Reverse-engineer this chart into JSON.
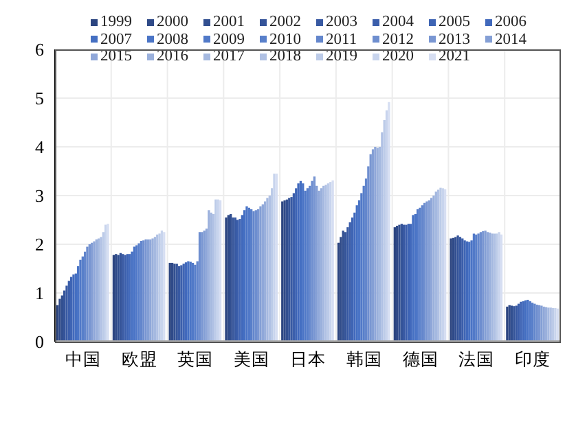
{
  "chart_data": {
    "type": "bar",
    "categories": [
      "中国",
      "欧盟",
      "英国",
      "美国",
      "日本",
      "韩国",
      "德国",
      "法国",
      "印度"
    ],
    "ylim": [
      0,
      6
    ],
    "yticks": [
      0,
      1,
      2,
      3,
      4,
      5,
      6
    ],
    "grid": true,
    "legend": "top",
    "series": [
      {
        "name": "1999",
        "color": "#2c4580",
        "values": [
          0.75,
          1.78,
          1.62,
          2.55,
          2.88,
          2.03,
          2.35,
          2.12,
          0.72
        ]
      },
      {
        "name": "2000",
        "color": "#2f4a88",
        "values": [
          0.88,
          1.8,
          1.62,
          2.6,
          2.9,
          2.15,
          2.38,
          2.13,
          0.75
        ]
      },
      {
        "name": "2001",
        "color": "#324f90",
        "values": [
          0.95,
          1.78,
          1.6,
          2.62,
          2.92,
          2.28,
          2.4,
          2.15,
          0.74
        ]
      },
      {
        "name": "2002",
        "color": "#355499",
        "values": [
          1.05,
          1.82,
          1.6,
          2.55,
          2.95,
          2.25,
          2.42,
          2.18,
          0.73
        ]
      },
      {
        "name": "2003",
        "color": "#3859a2",
        "values": [
          1.15,
          1.8,
          1.55,
          2.55,
          2.97,
          2.35,
          2.4,
          2.15,
          0.74
        ]
      },
      {
        "name": "2004",
        "color": "#3b5eab",
        "values": [
          1.25,
          1.78,
          1.57,
          2.5,
          3.05,
          2.45,
          2.4,
          2.12,
          0.78
        ]
      },
      {
        "name": "2005",
        "color": "#3e64b4",
        "values": [
          1.33,
          1.8,
          1.6,
          2.52,
          3.15,
          2.55,
          2.42,
          2.08,
          0.82
        ]
      },
      {
        "name": "2006",
        "color": "#4169bc",
        "values": [
          1.38,
          1.8,
          1.63,
          2.6,
          3.25,
          2.65,
          2.42,
          2.06,
          0.83
        ]
      },
      {
        "name": "2007",
        "color": "#446fc2",
        "values": [
          1.4,
          1.85,
          1.65,
          2.7,
          3.3,
          2.8,
          2.6,
          2.05,
          0.85
        ]
      },
      {
        "name": "2008",
        "color": "#4a74c6",
        "values": [
          1.55,
          1.95,
          1.64,
          2.78,
          3.25,
          2.9,
          2.62,
          2.08,
          0.86
        ]
      },
      {
        "name": "2009",
        "color": "#5179c8",
        "values": [
          1.68,
          1.98,
          1.62,
          2.75,
          3.1,
          3.05,
          2.72,
          2.22,
          0.83
        ]
      },
      {
        "name": "2010",
        "color": "#587fca",
        "values": [
          1.75,
          2.02,
          1.58,
          2.72,
          3.15,
          3.2,
          2.75,
          2.2,
          0.8
        ]
      },
      {
        "name": "2011",
        "color": "#6386cc",
        "values": [
          1.85,
          2.07,
          1.65,
          2.68,
          3.2,
          3.35,
          2.8,
          2.22,
          0.78
        ]
      },
      {
        "name": "2012",
        "color": "#6e8ecf",
        "values": [
          1.95,
          2.08,
          2.25,
          2.7,
          3.3,
          3.6,
          2.85,
          2.25,
          0.76
        ]
      },
      {
        "name": "2013",
        "color": "#7996d2",
        "values": [
          2.0,
          2.1,
          2.25,
          2.72,
          3.39,
          3.85,
          2.88,
          2.27,
          0.75
        ]
      },
      {
        "name": "2014",
        "color": "#849fd5",
        "values": [
          2.03,
          2.1,
          2.28,
          2.78,
          3.2,
          3.95,
          2.9,
          2.28,
          0.74
        ]
      },
      {
        "name": "2015",
        "color": "#8fa7d9",
        "values": [
          2.06,
          2.1,
          2.32,
          2.82,
          3.1,
          4.0,
          2.95,
          2.25,
          0.72
        ]
      },
      {
        "name": "2016",
        "color": "#9ab0dc",
        "values": [
          2.1,
          2.12,
          2.7,
          2.88,
          3.15,
          3.98,
          3.0,
          2.24,
          0.71
        ]
      },
      {
        "name": "2017",
        "color": "#a5b9e0",
        "values": [
          2.12,
          2.15,
          2.65,
          2.95,
          3.2,
          4.0,
          3.08,
          2.22,
          0.7
        ]
      },
      {
        "name": "2018",
        "color": "#b0c1e4",
        "values": [
          2.15,
          2.2,
          2.62,
          3.0,
          3.22,
          4.3,
          3.12,
          2.22,
          0.7
        ]
      },
      {
        "name": "2019",
        "color": "#bccbe8",
        "values": [
          2.25,
          2.22,
          2.92,
          3.15,
          3.25,
          4.55,
          3.16,
          2.22,
          0.69
        ]
      },
      {
        "name": "2020",
        "color": "#c8d4ed",
        "values": [
          2.4,
          2.28,
          2.92,
          3.45,
          3.28,
          4.75,
          3.15,
          2.25,
          0.69
        ]
      },
      {
        "name": "2021",
        "color": "#d6def2",
        "values": [
          2.42,
          2.25,
          2.9,
          3.45,
          3.31,
          4.92,
          3.13,
          2.2,
          0.68
        ]
      }
    ]
  }
}
